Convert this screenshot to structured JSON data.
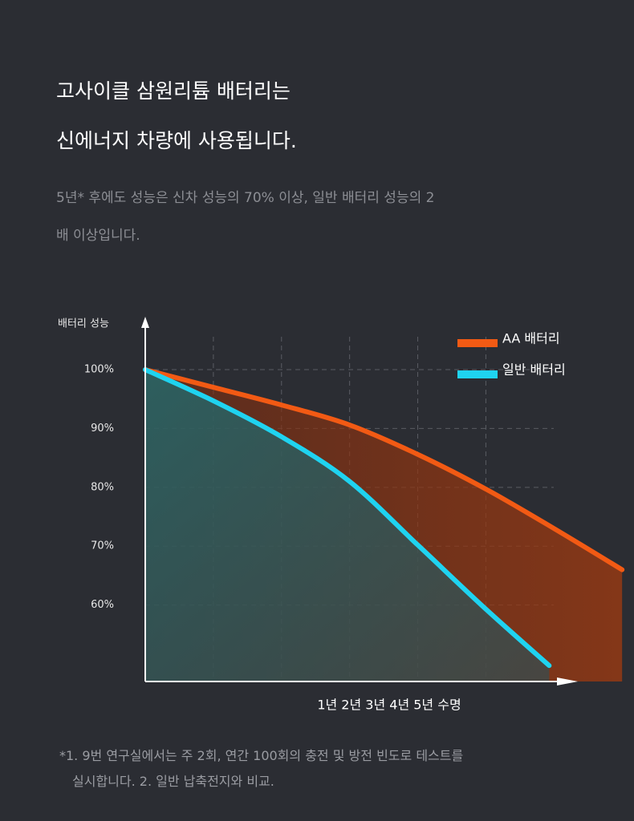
{
  "header": {
    "title_lines": [
      "고사이클 삼원리튬 배터리는",
      "신에너지 차량에 사용됩니다."
    ],
    "subtitle_lines": [
      "5년* 후에도 성능은 신차 성능의 70% 이상, 일반 배터리 성능의 2",
      "배 이상입니다."
    ]
  },
  "chart_data": {
    "type": "line",
    "ylabel": "배터리 성능",
    "xlabel": "1년 2년 3년 4년 5년 수명",
    "xlim": [
      0,
      6.35
    ],
    "xticks": [
      1,
      2,
      3,
      4,
      5
    ],
    "ylim": [
      47,
      109
    ],
    "yticks": [
      {
        "value": 100,
        "label": "100%"
      },
      {
        "value": 90,
        "label": "90%"
      },
      {
        "value": 80,
        "label": "80%"
      },
      {
        "value": 70,
        "label": "70%"
      },
      {
        "value": 60,
        "label": "60%"
      }
    ],
    "grid": true,
    "legend": "upper right",
    "series": [
      {
        "name": "AA 배터리",
        "color": "#f25a14",
        "x": [
          0,
          1,
          2,
          3,
          4,
          5,
          6,
          7
        ],
        "values": [
          100,
          97,
          94,
          90.6,
          85.6,
          79.7,
          73,
          66
        ]
      },
      {
        "name": "일반 배터리",
        "color": "#1fd3f0",
        "x": [
          0,
          1,
          2,
          3,
          4,
          5,
          5.93
        ],
        "values": [
          100,
          94.7,
          88.6,
          81,
          70.2,
          59.3,
          49.7
        ]
      }
    ]
  },
  "footnote_lines": [
    "*1. 9번 연구실에서는 주 2회, 연간 100회의 충전 및 방전 빈도로 테스트를",
    "실시합니다. 2. 일반 납축전지와 비교."
  ]
}
